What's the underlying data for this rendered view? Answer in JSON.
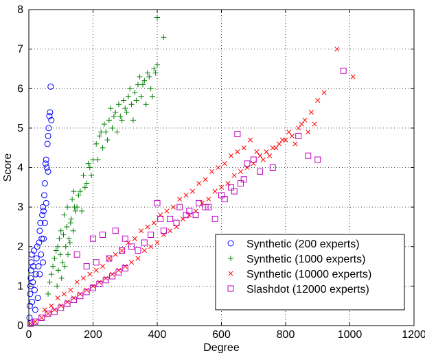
{
  "chart_data": {
    "type": "scatter",
    "title": "",
    "xlabel": "Degree",
    "ylabel": "Score",
    "xlim": [
      0,
      1200
    ],
    "ylim": [
      0,
      8
    ],
    "xticks": [
      0,
      200,
      400,
      600,
      800,
      1000,
      1200
    ],
    "yticks": [
      0,
      1,
      2,
      3,
      4,
      5,
      6,
      7,
      8
    ],
    "grid": true,
    "grid_style": "dotted",
    "legend_position": "bottom-right",
    "series": [
      {
        "name": "Synthetic (200 experts)",
        "marker": "circle",
        "color": "#0000ff",
        "points": [
          [
            2,
            0.2
          ],
          [
            3,
            0.5
          ],
          [
            4,
            0.8
          ],
          [
            5,
            1.0
          ],
          [
            6,
            1.2
          ],
          [
            7,
            1.4
          ],
          [
            8,
            1.6
          ],
          [
            9,
            1.8
          ],
          [
            10,
            0.6
          ],
          [
            12,
            1.1
          ],
          [
            14,
            1.5
          ],
          [
            16,
            1.9
          ],
          [
            18,
            0.9
          ],
          [
            20,
            0.4
          ],
          [
            22,
            1.3
          ],
          [
            24,
            1.7
          ],
          [
            26,
            2.0
          ],
          [
            28,
            0.7
          ],
          [
            30,
            1.5
          ],
          [
            32,
            2.1
          ],
          [
            34,
            2.4
          ],
          [
            36,
            2.6
          ],
          [
            38,
            1.8
          ],
          [
            40,
            2.2
          ],
          [
            42,
            2.8
          ],
          [
            44,
            3.0
          ],
          [
            46,
            2.9
          ],
          [
            48,
            3.3
          ],
          [
            50,
            3.6
          ],
          [
            52,
            4.1
          ],
          [
            54,
            4.2
          ],
          [
            56,
            4.0
          ],
          [
            58,
            4.6
          ],
          [
            60,
            4.8
          ],
          [
            62,
            5.0
          ],
          [
            64,
            5.3
          ],
          [
            66,
            5.4
          ],
          [
            68,
            6.05
          ],
          [
            70,
            5.2
          ],
          [
            46,
            2.2
          ],
          [
            50,
            2.6
          ],
          [
            34,
            1.3
          ],
          [
            54,
            3.1
          ],
          [
            44,
            1.6
          ],
          [
            60,
            3.9
          ]
        ]
      },
      {
        "name": "Synthetic (1000 experts)",
        "marker": "plus",
        "color": "#008000",
        "points": [
          [
            60,
            0.8
          ],
          [
            65,
            1.1
          ],
          [
            70,
            1.3
          ],
          [
            75,
            1.5
          ],
          [
            80,
            1.7
          ],
          [
            85,
            1.9
          ],
          [
            90,
            2.0
          ],
          [
            95,
            2.2
          ],
          [
            100,
            2.4
          ],
          [
            105,
            1.6
          ],
          [
            110,
            2.8
          ],
          [
            115,
            2.0
          ],
          [
            120,
            3.0
          ],
          [
            125,
            2.2
          ],
          [
            130,
            2.6
          ],
          [
            135,
            3.2
          ],
          [
            140,
            3.4
          ],
          [
            145,
            2.9
          ],
          [
            150,
            3.0
          ],
          [
            160,
            3.4
          ],
          [
            170,
            3.8
          ],
          [
            180,
            3.6
          ],
          [
            190,
            4.0
          ],
          [
            200,
            4.2
          ],
          [
            210,
            4.6
          ],
          [
            220,
            4.8
          ],
          [
            230,
            4.5
          ],
          [
            240,
            4.9
          ],
          [
            250,
            5.2
          ],
          [
            260,
            5.0
          ],
          [
            270,
            5.4
          ],
          [
            280,
            5.6
          ],
          [
            290,
            5.2
          ],
          [
            300,
            5.5
          ],
          [
            310,
            5.8
          ],
          [
            320,
            5.6
          ],
          [
            330,
            5.9
          ],
          [
            340,
            6.1
          ],
          [
            350,
            5.8
          ],
          [
            360,
            6.2
          ],
          [
            370,
            6.4
          ],
          [
            380,
            6.0
          ],
          [
            390,
            6.5
          ],
          [
            400,
            6.6
          ],
          [
            400,
            7.8
          ],
          [
            420,
            7.3
          ],
          [
            88,
            1.0
          ],
          [
            92,
            1.4
          ],
          [
            98,
            1.8
          ],
          [
            102,
            1.2
          ],
          [
            108,
            2.3
          ],
          [
            112,
            1.5
          ],
          [
            118,
            2.5
          ],
          [
            122,
            1.8
          ],
          [
            128,
            2.1
          ],
          [
            132,
            2.7
          ],
          [
            138,
            2.4
          ],
          [
            142,
            3.0
          ],
          [
            155,
            3.3
          ],
          [
            165,
            2.9
          ],
          [
            175,
            3.5
          ],
          [
            185,
            4.1
          ],
          [
            195,
            3.8
          ],
          [
            215,
            4.2
          ],
          [
            225,
            4.9
          ],
          [
            235,
            5.1
          ],
          [
            245,
            4.7
          ],
          [
            255,
            5.5
          ],
          [
            265,
            5.3
          ],
          [
            275,
            4.9
          ],
          [
            285,
            5.3
          ],
          [
            295,
            5.7
          ],
          [
            305,
            5.4
          ],
          [
            315,
            6.0
          ],
          [
            325,
            5.2
          ],
          [
            335,
            5.7
          ],
          [
            345,
            6.3
          ],
          [
            355,
            6.1
          ],
          [
            365,
            5.6
          ],
          [
            375,
            6.3
          ],
          [
            385,
            5.8
          ],
          [
            395,
            6.4
          ]
        ]
      },
      {
        "name": "Synthetic (10000 experts)",
        "marker": "cross",
        "color": "#ff0000",
        "points": [
          [
            5,
            0.05
          ],
          [
            20,
            0.1
          ],
          [
            40,
            0.2
          ],
          [
            60,
            0.3
          ],
          [
            80,
            0.4
          ],
          [
            100,
            0.5
          ],
          [
            120,
            0.6
          ],
          [
            140,
            0.7
          ],
          [
            160,
            0.8
          ],
          [
            180,
            0.9
          ],
          [
            200,
            1.0
          ],
          [
            220,
            1.1
          ],
          [
            240,
            1.2
          ],
          [
            260,
            1.3
          ],
          [
            280,
            1.4
          ],
          [
            300,
            1.5
          ],
          [
            320,
            1.6
          ],
          [
            340,
            1.7
          ],
          [
            360,
            1.9
          ],
          [
            380,
            2.0
          ],
          [
            400,
            2.1
          ],
          [
            420,
            2.3
          ],
          [
            440,
            2.4
          ],
          [
            460,
            2.5
          ],
          [
            480,
            2.7
          ],
          [
            500,
            2.8
          ],
          [
            520,
            2.9
          ],
          [
            540,
            3.1
          ],
          [
            560,
            3.2
          ],
          [
            580,
            3.4
          ],
          [
            600,
            3.5
          ],
          [
            620,
            3.6
          ],
          [
            640,
            3.8
          ],
          [
            660,
            3.9
          ],
          [
            680,
            4.0
          ],
          [
            700,
            4.1
          ],
          [
            720,
            4.3
          ],
          [
            740,
            4.4
          ],
          [
            760,
            4.5
          ],
          [
            780,
            4.6
          ],
          [
            800,
            4.7
          ],
          [
            820,
            4.8
          ],
          [
            840,
            5.0
          ],
          [
            860,
            5.2
          ],
          [
            880,
            5.4
          ],
          [
            900,
            5.7
          ],
          [
            920,
            5.9
          ],
          [
            960,
            7.0
          ],
          [
            1010,
            6.3
          ],
          [
            50,
            0.4
          ],
          [
            70,
            0.5
          ],
          [
            90,
            0.7
          ],
          [
            110,
            0.8
          ],
          [
            130,
            0.9
          ],
          [
            150,
            1.1
          ],
          [
            170,
            1.2
          ],
          [
            190,
            1.3
          ],
          [
            210,
            1.4
          ],
          [
            230,
            1.5
          ],
          [
            250,
            1.7
          ],
          [
            270,
            1.8
          ],
          [
            290,
            1.9
          ],
          [
            310,
            2.1
          ],
          [
            330,
            2.2
          ],
          [
            350,
            2.4
          ],
          [
            370,
            2.5
          ],
          [
            390,
            2.6
          ],
          [
            410,
            2.8
          ],
          [
            430,
            2.9
          ],
          [
            450,
            3.0
          ],
          [
            470,
            3.2
          ],
          [
            490,
            3.3
          ],
          [
            510,
            3.4
          ],
          [
            530,
            3.6
          ],
          [
            550,
            3.7
          ],
          [
            570,
            3.9
          ],
          [
            590,
            4.0
          ],
          [
            610,
            4.1
          ],
          [
            630,
            4.3
          ],
          [
            650,
            4.4
          ],
          [
            670,
            4.5
          ],
          [
            690,
            4.7
          ],
          [
            710,
            4.4
          ],
          [
            730,
            4.2
          ],
          [
            750,
            4.3
          ],
          [
            770,
            4.5
          ],
          [
            790,
            4.7
          ],
          [
            810,
            4.9
          ],
          [
            830,
            4.6
          ],
          [
            850,
            5.1
          ],
          [
            870,
            4.9
          ],
          [
            890,
            5.1
          ]
        ]
      },
      {
        "name": "Slashdot (12000 experts)",
        "marker": "square",
        "color": "#c000c0",
        "points": [
          [
            5,
            0.05
          ],
          [
            20,
            0.1
          ],
          [
            40,
            0.2
          ],
          [
            60,
            0.3
          ],
          [
            80,
            0.35
          ],
          [
            100,
            0.45
          ],
          [
            120,
            0.55
          ],
          [
            140,
            0.65
          ],
          [
            160,
            0.75
          ],
          [
            180,
            0.85
          ],
          [
            200,
            0.95
          ],
          [
            220,
            1.05
          ],
          [
            240,
            1.15
          ],
          [
            260,
            1.25
          ],
          [
            280,
            1.35
          ],
          [
            300,
            1.45
          ],
          [
            150,
            1.8
          ],
          [
            200,
            2.2
          ],
          [
            230,
            2.3
          ],
          [
            270,
            2.4
          ],
          [
            300,
            2.2
          ],
          [
            320,
            2.0
          ],
          [
            340,
            1.9
          ],
          [
            400,
            3.1
          ],
          [
            410,
            2.7
          ],
          [
            440,
            2.7
          ],
          [
            470,
            3.0
          ],
          [
            490,
            2.8
          ],
          [
            520,
            2.8
          ],
          [
            550,
            3.0
          ],
          [
            580,
            2.7
          ],
          [
            600,
            3.3
          ],
          [
            640,
            3.4
          ],
          [
            660,
            3.6
          ],
          [
            680,
            4.1
          ],
          [
            700,
            4.2
          ],
          [
            650,
            4.85
          ],
          [
            840,
            4.8
          ],
          [
            870,
            4.3
          ],
          [
            900,
            4.2
          ],
          [
            980,
            6.45
          ],
          [
            180,
            1.5
          ],
          [
            210,
            1.6
          ],
          [
            250,
            1.7
          ],
          [
            290,
            1.9
          ],
          [
            360,
            2.1
          ],
          [
            380,
            2.3
          ],
          [
            420,
            2.4
          ],
          [
            460,
            2.6
          ],
          [
            500,
            2.9
          ],
          [
            530,
            3.1
          ],
          [
            560,
            3.0
          ],
          [
            610,
            3.2
          ],
          [
            630,
            3.5
          ],
          [
            670,
            3.7
          ],
          [
            720,
            3.9
          ],
          [
            760,
            4.0
          ]
        ]
      }
    ]
  }
}
